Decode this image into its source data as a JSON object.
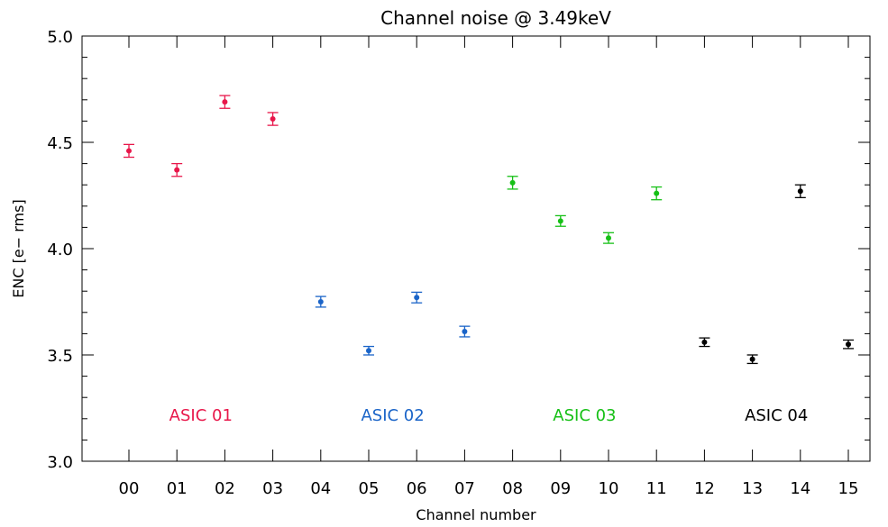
{
  "chart_data": {
    "type": "scatter",
    "title": "Channel noise @ 3.49keV",
    "xlabel": "Channel number",
    "ylabel": "ENC [e− rms]",
    "ylim": [
      3.0,
      5.0
    ],
    "y_ticks": [
      3.0,
      3.5,
      4.0,
      4.5,
      5.0
    ],
    "y_tick_labels": [
      "3.0",
      "3.5",
      "4.0",
      "4.5",
      "5.0"
    ],
    "categories": [
      "00",
      "01",
      "02",
      "03",
      "04",
      "05",
      "06",
      "07",
      "08",
      "09",
      "10",
      "11",
      "12",
      "13",
      "14",
      "15"
    ],
    "grid": false,
    "series": [
      {
        "name": "ASIC 01",
        "color": "#e8174a",
        "x": [
          "00",
          "01",
          "02",
          "03"
        ],
        "y": [
          4.46,
          4.37,
          4.69,
          4.61
        ],
        "err": [
          0.03,
          0.03,
          0.03,
          0.03
        ]
      },
      {
        "name": "ASIC 02",
        "color": "#1a64c8",
        "x": [
          "04",
          "05",
          "06",
          "07"
        ],
        "y": [
          3.75,
          3.52,
          3.77,
          3.61
        ],
        "err": [
          0.025,
          0.02,
          0.025,
          0.025
        ]
      },
      {
        "name": "ASIC 03",
        "color": "#16c016",
        "x": [
          "08",
          "09",
          "10",
          "11"
        ],
        "y": [
          4.31,
          4.13,
          4.05,
          4.26
        ],
        "err": [
          0.03,
          0.025,
          0.025,
          0.03
        ]
      },
      {
        "name": "ASIC 04",
        "color": "#000000",
        "x": [
          "12",
          "13",
          "14",
          "15"
        ],
        "y": [
          3.56,
          3.48,
          4.27,
          3.55
        ],
        "err": [
          0.02,
          0.02,
          0.03,
          0.02
        ]
      }
    ]
  }
}
